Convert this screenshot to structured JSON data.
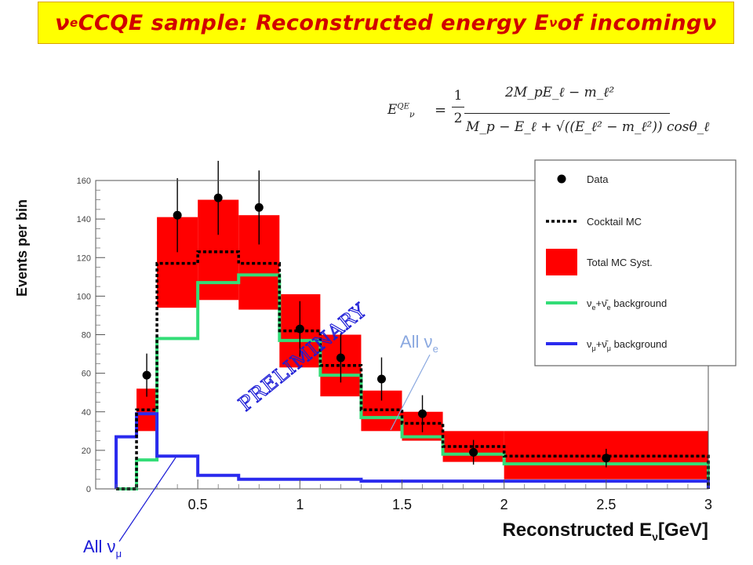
{
  "title": "ν_e CCQE sample: Reconstructed energy E_ν of incoming ν",
  "title_parts": {
    "nu1": "ν",
    "sub_e": "e",
    "text1": " CCQE sample: Reconstructed energy E",
    "sub_nu": "ν",
    "text2": " of incoming ",
    "nu2": "ν"
  },
  "formula": {
    "lhs": "E",
    "lhs_sup": "QE",
    "lhs_sub": "ν",
    "eq": "=",
    "half_num": "1",
    "half_den": "2",
    "numerator": "2M_pE_ℓ − m_ℓ²",
    "denominator": "M_p − E_ℓ + √((E_ℓ² − m_ℓ²)) cosθ_ℓ"
  },
  "annotations": {
    "preliminary": "PRELIMINARY",
    "all_nue": "All ν",
    "all_nue_sub": "e",
    "all_numu": "All ν",
    "all_numu_sub": "μ"
  },
  "colors": {
    "syst": "#ff0000",
    "nue": "#33dd77",
    "numu": "#2a2aee",
    "data": "#000000",
    "mc": "#000000",
    "title_bg": "#ffff00",
    "title_fg": "#d10000",
    "annot_blue": "#1a1ad6",
    "annot_light": "#8aa8e0"
  },
  "chart_data": {
    "type": "bar",
    "xlabel": "Reconstructed E_ν[GeV]",
    "xlabel_parts": {
      "a": "Reconstructed E",
      "sub": "ν",
      "b": "[GeV]"
    },
    "ylabel": "Events per bin",
    "xlim": [
      0,
      3
    ],
    "ylim": [
      0,
      160
    ],
    "x_ticks": [
      "0.5",
      "1",
      "1.5",
      "2",
      "2.5",
      "3"
    ],
    "x_tick_values": [
      0.5,
      1,
      1.5,
      2,
      2.5,
      3
    ],
    "y_ticks": [
      "0",
      "20",
      "40",
      "60",
      "80",
      "100",
      "120",
      "140",
      "160"
    ],
    "y_tick_values": [
      0,
      20,
      40,
      60,
      80,
      100,
      120,
      140,
      160
    ],
    "bin_edges": [
      0.1,
      0.2,
      0.3,
      0.5,
      0.7,
      0.9,
      1.1,
      1.3,
      1.5,
      1.7,
      2.0,
      3.0
    ],
    "legend": [
      {
        "label": "Data"
      },
      {
        "label": "Cocktail MC"
      },
      {
        "label": "Total MC Syst."
      },
      {
        "label": "ν_e+ν̄_e background",
        "parts": {
          "a": "ν",
          "sa": "e",
          "b": "+",
          "c": "ν̄",
          "sc": "e",
          "d": " background"
        }
      },
      {
        "label": "ν_μ+ν̄_μ background",
        "parts": {
          "a": "ν",
          "sa": "μ",
          "b": "+",
          "c": "ν̄",
          "sc": "μ",
          "d": " background"
        }
      }
    ],
    "series": [
      {
        "name": "Cocktail MC",
        "values": [
          0,
          41,
          117,
          123,
          117,
          82,
          64,
          41,
          34,
          22,
          17
        ]
      },
      {
        "name": "Total MC Syst.",
        "lower": [
          0,
          30,
          94,
          98,
          93,
          63,
          48,
          30,
          25,
          14,
          5
        ],
        "upper": [
          0,
          52,
          141,
          150,
          142,
          101,
          80,
          51,
          40,
          30,
          30
        ]
      },
      {
        "name": "ν_e+ν̄_e background",
        "values": [
          0,
          15,
          78,
          107,
          111,
          77,
          59,
          37,
          27,
          18,
          13
        ]
      },
      {
        "name": "ν_μ+ν̄_μ background",
        "values": [
          27,
          39,
          17,
          7,
          5,
          5,
          5,
          4,
          4,
          4,
          4
        ]
      },
      {
        "name": "Data",
        "points": [
          {
            "x": 0.25,
            "y": 59,
            "err": 7
          },
          {
            "x": 0.4,
            "y": 142,
            "err": 12
          },
          {
            "x": 0.6,
            "y": 151,
            "err": 12
          },
          {
            "x": 0.8,
            "y": 146,
            "err": 12
          },
          {
            "x": 1.0,
            "y": 83,
            "err": 9
          },
          {
            "x": 1.2,
            "y": 68,
            "err": 8
          },
          {
            "x": 1.4,
            "y": 57,
            "err": 7
          },
          {
            "x": 1.6,
            "y": 39,
            "err": 6
          },
          {
            "x": 1.85,
            "y": 19,
            "err": 4
          },
          {
            "x": 2.5,
            "y": 16,
            "err": 3
          }
        ]
      }
    ]
  }
}
